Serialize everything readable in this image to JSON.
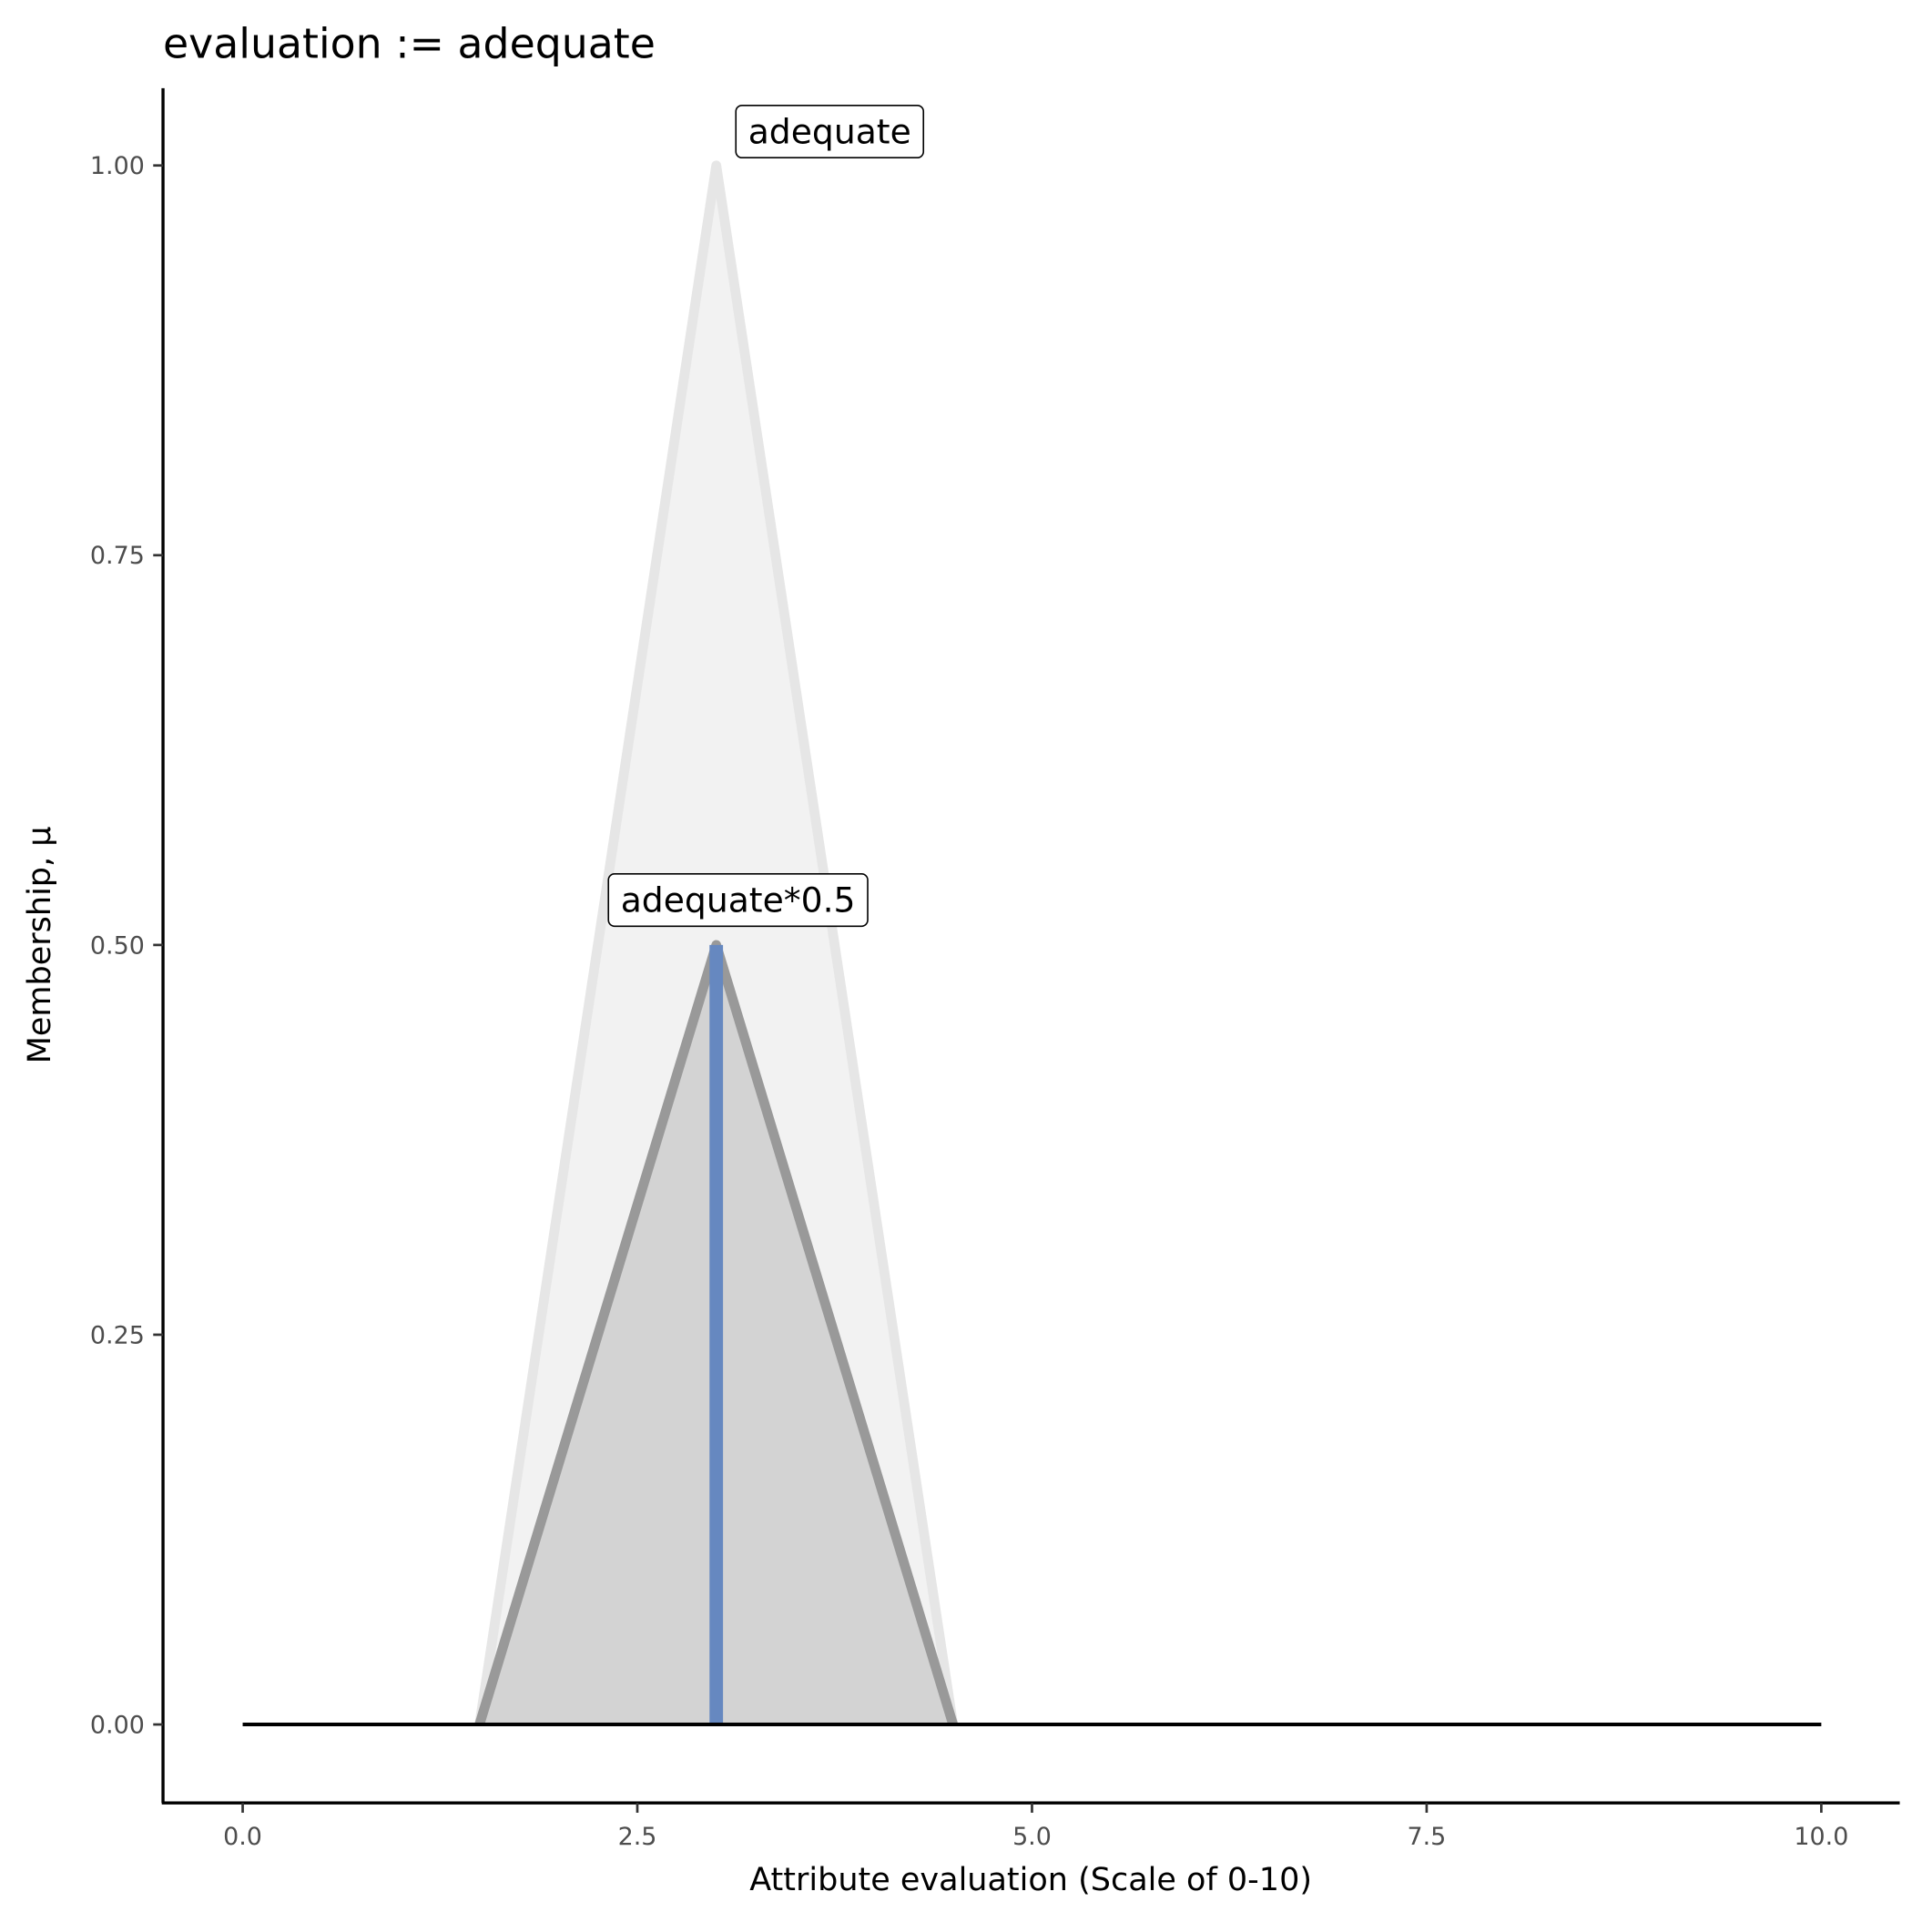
{
  "chart_data": {
    "type": "area",
    "title": "evaluation := adequate",
    "xlabel": "Attribute evaluation (Scale of 0-10)",
    "ylabel": "Membership, μ",
    "xlim": [
      -0.5,
      10.5
    ],
    "ylim": [
      -0.05,
      1.05
    ],
    "x_ticks": [
      0,
      2.5,
      5,
      7.5,
      10
    ],
    "x_tick_labels": [
      "0.0",
      "2.5",
      "5.0",
      "7.5",
      "10.0"
    ],
    "y_ticks": [
      0,
      0.25,
      0.5,
      0.75,
      1
    ],
    "y_tick_labels": [
      "0.00",
      "0.25",
      "0.50",
      "0.75",
      "1.00"
    ],
    "grid": false,
    "series": [
      {
        "name": "adequate",
        "x": [
          1.5,
          3,
          4.5
        ],
        "y": [
          0,
          1,
          0
        ],
        "fill": "#f2f2f2",
        "stroke": "#e6e6e6"
      },
      {
        "name": "adequate*0.5",
        "x": [
          1.5,
          3,
          4.5
        ],
        "y": [
          0,
          0.5,
          0
        ],
        "fill": "#d3d3d3",
        "stroke": "#999999"
      }
    ],
    "evaluation_line": {
      "x": 3,
      "y": [
        0,
        0.5
      ],
      "color": "#6688c0"
    },
    "baseline": {
      "x": [
        0,
        10
      ],
      "y": 0,
      "color": "#000000"
    },
    "annotations": [
      {
        "text": "adequate",
        "x": 3,
        "y": 1
      },
      {
        "text": "adequate*0.5",
        "x": 3,
        "y": 0.5
      }
    ]
  }
}
